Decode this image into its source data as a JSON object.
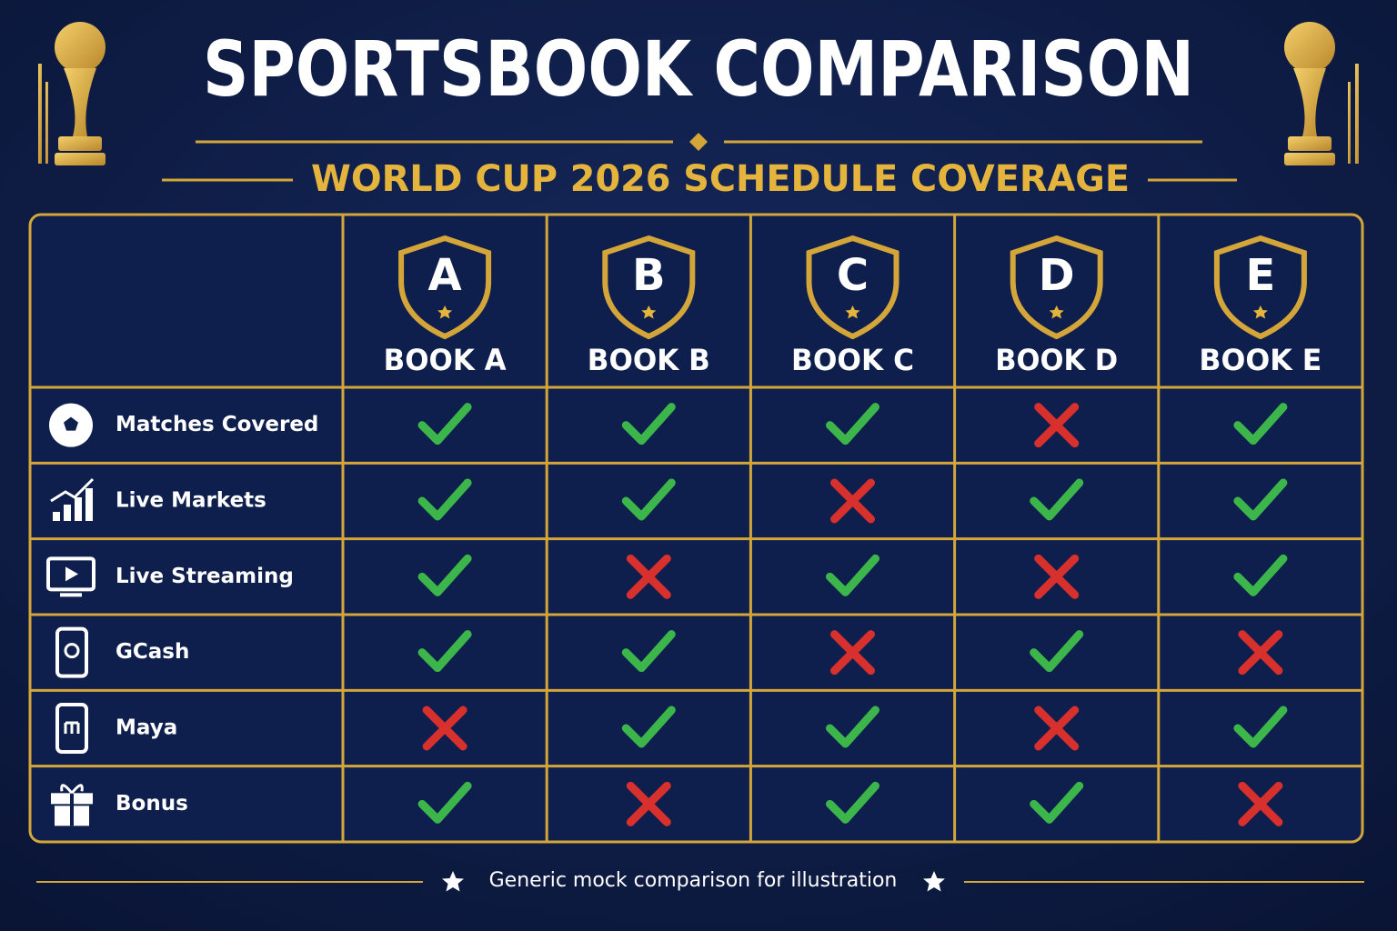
{
  "header": {
    "title": "SPORTSBOOK COMPARISON",
    "subtitle": "WORLD CUP 2026 SCHEDULE COVERAGE"
  },
  "table": {
    "columns": [
      {
        "badge": "A",
        "name": "BOOK A"
      },
      {
        "badge": "B",
        "name": "BOOK B"
      },
      {
        "badge": "C",
        "name": "BOOK C"
      },
      {
        "badge": "D",
        "name": "BOOK D"
      },
      {
        "badge": "E",
        "name": "BOOK E"
      }
    ],
    "rows": [
      {
        "label": "Matches Covered",
        "values": [
          true,
          true,
          true,
          false,
          true
        ]
      },
      {
        "label": "Live Markets",
        "values": [
          true,
          true,
          false,
          true,
          true
        ]
      },
      {
        "label": "Live Streaming",
        "values": [
          true,
          false,
          true,
          false,
          true
        ]
      },
      {
        "label": "GCash",
        "values": [
          true,
          true,
          false,
          true,
          false
        ]
      },
      {
        "label": "Maya",
        "values": [
          false,
          true,
          true,
          false,
          true
        ]
      },
      {
        "label": "Bonus",
        "values": [
          true,
          false,
          true,
          true,
          false
        ]
      }
    ]
  },
  "footer": {
    "note": "Generic mock comparison for illustration"
  }
}
